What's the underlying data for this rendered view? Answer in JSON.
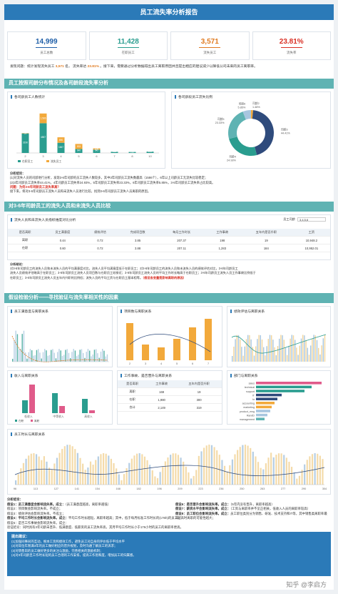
{
  "title": "员工流失率分析报告",
  "kpis": [
    {
      "value": "14,999",
      "label": "员工总数",
      "color": "#1f5fa8"
    },
    {
      "value": "11,428",
      "label": "在职员工",
      "color": "#2a9d8f"
    },
    {
      "value": "3,571",
      "label": "流失员工",
      "color": "#e07a1f"
    },
    {
      "value": "23.81%",
      "label": "流失率",
      "color": "#d93025"
    }
  ],
  "intro": {
    "pre": "发现问题：统计发现流失员工",
    "count": "3,571",
    "mid": "名，",
    "rate_label": "流失率达",
    "rate": "23.81%",
    "post": "。接下来，需要通过分析数据得出员工离职原因并且提出相应的建议减少以降低公司未来的员工离职率。"
  },
  "sections": {
    "s1": "员工按照司龄分布情况及各司龄段流失率分析",
    "s2": "对3-6年司龄员工的流失人员和未流失人员比较",
    "s3": "假设检验分析——寻找验证与流失率相关性的因素"
  },
  "bar_panel": {
    "title": "各司龄员工人数统计",
    "legend": [
      "在职员工",
      "流失员工"
    ],
    "chart_data": {
      "type": "bar",
      "categories": [
        "2",
        "3",
        "4",
        "5",
        "6",
        "7",
        "8",
        "10"
      ],
      "series": [
        {
          "name": "在职员工",
          "values": [
            3190,
            4857,
            1667,
            640,
            542,
            188,
            162,
            214
          ]
        },
        {
          "name": "流失员工",
          "values": [
            53,
            1586,
            890,
            833,
            209,
            0,
            0,
            0
          ]
        }
      ],
      "labels_active": [
        "3190",
        "4857",
        "1667",
        "640",
        "542",
        "188",
        "162",
        "214"
      ],
      "labels_left": [
        "53",
        "1,586",
        "890",
        "833",
        "209"
      ],
      "ylim": [
        0,
        7000
      ]
    }
  },
  "pie_panel": {
    "title": "各司龄段员工流失比例",
    "labels": [
      "司龄2",
      "司龄3",
      "司龄4",
      "司龄5",
      "司龄6"
    ],
    "pcts": [
      "1.48%",
      "44.41%",
      "24.93%",
      "23.33%",
      "5.85%"
    ],
    "chart_data": {
      "type": "pie",
      "categories": [
        "司龄2",
        "司龄3",
        "司龄4",
        "司龄5",
        "司龄6"
      ],
      "values": [
        1.48,
        44.41,
        24.93,
        23.33,
        5.85
      ]
    },
    "colors": [
      "#f2a93b",
      "#2f4b7c",
      "#2a9d8f",
      "#5fb3b3",
      "#a8c6df"
    ]
  },
  "analysis1": {
    "head": "分析结论：",
    "l1": "(1)对流失人员的司龄进行分析，发现3-6年司龄的员工流失人数较多，其中3年司龄员工流失数最高（1586个），6年以上司龄员工无流失比较稳定；",
    "l2": "(2)3年司龄员工流失率44.41%，4年司龄员工流失率24.93%，5年司龄员工流失率23.33%，6年司龄员工流失率5.85%，3-6年司龄员工流失率占比较高。",
    "q": "问题：为何3-6年司龄员工流失率高？",
    "l3": "接下来，将对3-6年司龄员工流失人员和未流失人员进行比较，找到3-6年司龄员工流失人员离职的原因。"
  },
  "compare_panel": {
    "title": "流失人员和未流失人员指标维度对比分析",
    "filter_label": "员工司龄",
    "filter_value": "3,4,5,6",
    "headers": [
      "是否离职",
      "员工满意度",
      "绩效评估",
      "完成项目数",
      "每月工作时长",
      "工作事故",
      "五年内是否升职",
      "工资"
    ],
    "rows": [
      [
        "离职",
        "0.44",
        "0.72",
        "3.85",
        "207.37",
        "198",
        "19",
        "10,948.2"
      ],
      [
        "在职",
        "0.60",
        "0.72",
        "3.88",
        "207.11",
        "1,283",
        "184",
        "10,952.01"
      ]
    ]
  },
  "analysis2": {
    "head": "分析结论：",
    "l1": "对3-6年司龄员工的流失人员和未流失人员的平均满意度对比，流失人员平均满意度低于在职员工；对3-6年司龄员工的流失人员和未流失人员的绩效评估对比，3-6年司龄员工",
    "l2": "流失人员绩效评估略高于在职员工；3-6年司龄员工流失人员项目数与在职员工较接近；3-6年司龄员工流失人员的平均工作时长略高于在职员工；3-6年司龄员工流失人员工作事故比例低于",
    "l3": "在职员工；3-6年司龄员工流失人员五年内升职的比例低；流失人员的平均工资与在职员工基本相等。",
    "q": "（假设各变量是影响离职的原因）"
  },
  "charts3": {
    "sat_title": "员工满意度与离职关系",
    "proj_title": "项目数与离职关系",
    "eval_title": "绩效评估与离职关系",
    "salary_title": "收入与离职关系",
    "salary_cats": [
      "低收入",
      "中等收入",
      "高收入"
    ],
    "salary_legend": [
      "在职",
      "离职"
    ],
    "acc_title": "工作事故、是否晋升与离职关系",
    "acc_headers": [
      "是否离职",
      "工作事故",
      "五年内是否升职"
    ],
    "acc_rows": [
      [
        "离职",
        "169",
        "19"
      ],
      [
        "在职",
        "1,980",
        "300"
      ],
      [
        "合计",
        "2,149",
        "319"
      ]
    ],
    "dept_title": "部门与离职关系",
    "depts": [
      "sales",
      "technical",
      "support",
      "IT",
      "hr",
      "accounting",
      "marketing",
      "product_mng",
      "RandD",
      "management"
    ],
    "proj_cats": [
      "2",
      "3",
      "4",
      "5",
      "6",
      "7"
    ],
    "hours_title": "员工时长与离职关系",
    "hours_ticks": [
      "96",
      "113",
      "127",
      "141",
      "154",
      "168",
      "182",
      "196",
      "209",
      "223",
      "236",
      "250",
      "263",
      "277",
      "290",
      "304"
    ]
  },
  "analysis3": {
    "head": "分析结论：",
    "h1": "假设1：员工满意度会影响流失率。成立：",
    "h1b": "（员工满意度越高，离职率越低）",
    "h2": "假设2：项目数会影响流失率。不成立；",
    "h3": "假设3：绩效评估会影响流失率。不成立；",
    "h4": "假设4：平均工作时长会影响流失率。成立：",
    "h4b": "平均工作时长越短，离职率越高；其中，低于每月标准工作时长的(176h)的员工越高时离职的可能性越大；",
    "h5": "假设5：是否工作事故会影响流失率。成立：",
    "h6": "假设6：是否晋升会影响流失率。成立：",
    "h6b": "（5年内没有晋升，离职率越高）",
    "h7": "假设7：薪资水平会影响流失率。成立：",
    "h7b": "（工资与离职率并不呈正相关，低收入人员的离职率较高）",
    "h8": "假设8：员工职位会影响流失率。成立：",
    "h8b": "员工职位类别分为销售、研发、技术支持和IT等，其中销售类离职率最高。",
    "fin": "验证结论：同时具有3年司龄未晋升、低满意度、低薪资的员工流失率高，其月平均工作时长小于176小时的员工的离职率更高。"
  },
  "tips": {
    "head": "提出建议：",
    "l1": "(1)加强同事间的互动，根本工资和绩效工作，避免员工对自身的评价低于平均水平",
    "l2": "(2)对岗位年限满3年的员工做好相应的晋升规划，及时沟通了解员工的诉求；",
    "l3": "(3)对销售岗的员工做好更多的关注与激励，完善相关的激励机制；",
    "l4": "(4)对3年司龄且工作时长短的员工合理的工作安排，提高工作饱和度，增加员工的归属感。"
  },
  "watermark": "知乎 @李启方"
}
